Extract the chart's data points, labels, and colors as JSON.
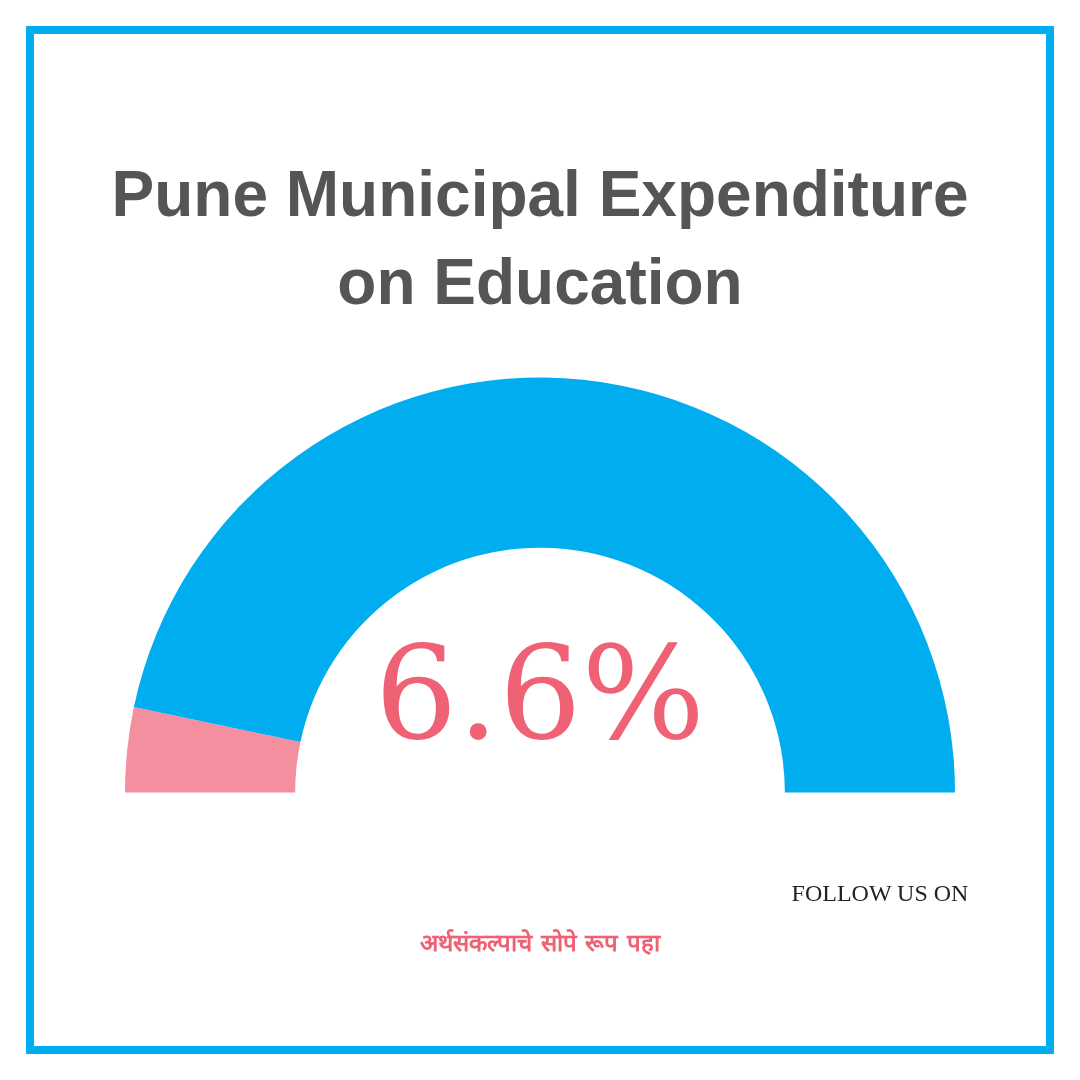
{
  "chart_data": {
    "type": "donut",
    "title": "Pune Municipal Expenditure on Education",
    "categories": [
      null,
      null
    ],
    "values": [
      6.6,
      93.4
    ],
    "colors": [
      "#f48fa0",
      "#00aeef"
    ],
    "legend": false,
    "annotations": [
      "6.6%",
      "अर्थसंकल्पाचे सोपे रूप पहा",
      "FOLLOW US ON"
    ]
  }
}
